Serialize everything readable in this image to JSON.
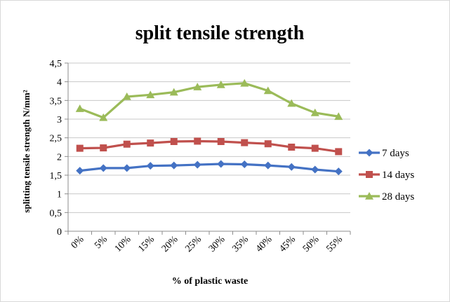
{
  "chart_data": {
    "type": "line",
    "title": "split tensile strength",
    "xlabel": "% of plastic waste",
    "ylabel": "splitting tensile strength N/mm²",
    "categories": [
      "0%",
      "5%",
      "10%",
      "15%",
      "20%",
      "25%",
      "30%",
      "35%",
      "40%",
      "45%",
      "50%",
      "55%"
    ],
    "y_ticks": [
      "0",
      "0,5",
      "1",
      "1,5",
      "2",
      "2,5",
      "3",
      "3,5",
      "4",
      "4,5"
    ],
    "ylim": [
      0,
      4.5
    ],
    "grid": true,
    "legend_position": "right",
    "series": [
      {
        "name": "7 days",
        "color": "#4472c4",
        "marker": "diamond",
        "values": [
          1.62,
          1.69,
          1.69,
          1.75,
          1.76,
          1.78,
          1.8,
          1.79,
          1.76,
          1.72,
          1.65,
          1.6
        ]
      },
      {
        "name": "14 days",
        "color": "#c0504d",
        "marker": "square",
        "values": [
          2.22,
          2.23,
          2.33,
          2.36,
          2.4,
          2.41,
          2.4,
          2.37,
          2.34,
          2.25,
          2.22,
          2.13
        ]
      },
      {
        "name": "28 days",
        "color": "#9bbb59",
        "marker": "triangle",
        "values": [
          3.28,
          3.04,
          3.6,
          3.65,
          3.72,
          3.86,
          3.92,
          3.96,
          3.76,
          3.42,
          3.17,
          3.07
        ]
      }
    ]
  }
}
